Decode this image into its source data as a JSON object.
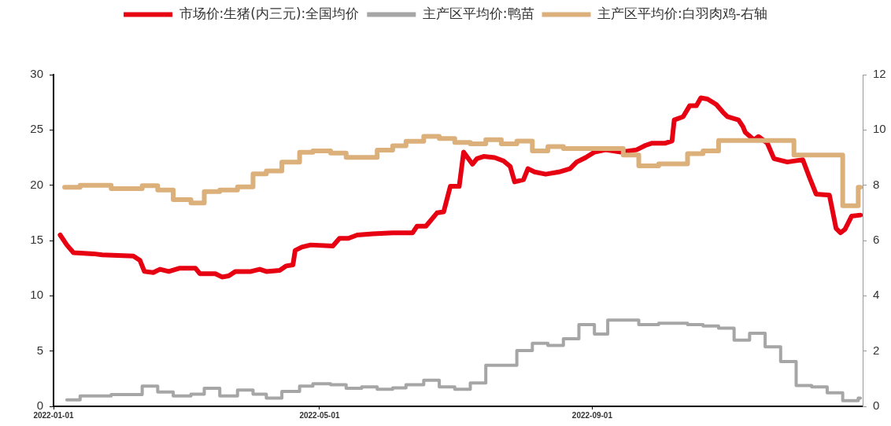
{
  "chart_data": {
    "type": "line",
    "legend": "top",
    "xlim": [
      "2022-01-01",
      "2023-01-01"
    ],
    "xticks": [
      "2022-01-01",
      "2022-05-01",
      "2022-09-01"
    ],
    "ylim": [
      0,
      30
    ],
    "yticks": [
      0,
      5,
      10,
      15,
      20,
      25,
      30
    ],
    "y2lim": [
      0,
      12
    ],
    "y2ticks": [
      0,
      2,
      4,
      6,
      8,
      10,
      12
    ],
    "series": [
      {
        "name": "市场价:生猪(内三元):全国均价",
        "color": "#e60012",
        "type": "line",
        "x": [
          "2022-01-04",
          "2022-01-07",
          "2022-01-10",
          "2022-01-19",
          "2022-01-23",
          "2022-02-06",
          "2022-02-09",
          "2022-02-11",
          "2022-02-15",
          "2022-02-18",
          "2022-02-22",
          "2022-02-27",
          "2022-03-06",
          "2022-03-08",
          "2022-03-15",
          "2022-03-18",
          "2022-03-21",
          "2022-03-24",
          "2022-03-31",
          "2022-04-04",
          "2022-04-07",
          "2022-04-13",
          "2022-04-16",
          "2022-04-19",
          "2022-04-20",
          "2022-04-23",
          "2022-04-27",
          "2022-05-07",
          "2022-05-10",
          "2022-05-14",
          "2022-05-18",
          "2022-05-25",
          "2022-06-03",
          "2022-06-10",
          "2022-06-12",
          "2022-06-14",
          "2022-06-18",
          "2022-06-23",
          "2022-06-26",
          "2022-06-29",
          "2022-07-03",
          "2022-07-05",
          "2022-07-09",
          "2022-07-11",
          "2022-07-14",
          "2022-07-19",
          "2022-07-23",
          "2022-07-26",
          "2022-07-28",
          "2022-08-01",
          "2022-08-03",
          "2022-08-06",
          "2022-08-11",
          "2022-08-17",
          "2022-08-22",
          "2022-08-25",
          "2022-08-29",
          "2022-09-02",
          "2022-09-07",
          "2022-09-14",
          "2022-09-21",
          "2022-09-25",
          "2022-09-28",
          "2022-10-04",
          "2022-10-07",
          "2022-10-08",
          "2022-10-12",
          "2022-10-15",
          "2022-10-18",
          "2022-10-20",
          "2022-10-23",
          "2022-10-27",
          "2022-10-30",
          "2022-11-01",
          "2022-11-06",
          "2022-11-08",
          "2022-11-09",
          "2022-11-13",
          "2022-11-15",
          "2022-11-19",
          "2022-11-22",
          "2022-11-28",
          "2022-12-05",
          "2022-12-08",
          "2022-12-11",
          "2022-12-17",
          "2022-12-20",
          "2022-12-22",
          "2022-12-24",
          "2022-12-27",
          "2022-12-31"
        ],
        "values": [
          15.5,
          14.6,
          13.9,
          13.8,
          13.7,
          13.6,
          13.2,
          12.2,
          12.1,
          12.4,
          12.2,
          12.5,
          12.5,
          12.0,
          12.0,
          11.7,
          11.8,
          12.2,
          12.2,
          12.4,
          12.2,
          12.3,
          12.7,
          12.8,
          14.1,
          14.4,
          14.6,
          14.5,
          15.2,
          15.2,
          15.5,
          15.6,
          15.7,
          15.7,
          15.7,
          16.3,
          16.3,
          17.5,
          17.6,
          19.9,
          19.9,
          23.0,
          21.9,
          22.4,
          22.6,
          22.5,
          22.2,
          21.7,
          20.3,
          20.5,
          21.5,
          21.2,
          21.0,
          21.2,
          21.5,
          22.1,
          22.5,
          23.0,
          23.2,
          23.0,
          23.2,
          23.6,
          23.8,
          23.8,
          24.0,
          25.9,
          26.2,
          27.2,
          27.2,
          27.9,
          27.8,
          27.3,
          26.6,
          26.2,
          25.9,
          25.3,
          24.8,
          24.1,
          24.4,
          23.8,
          22.4,
          22.1,
          22.3,
          20.7,
          19.2,
          19.1,
          16.1,
          15.7,
          16.0,
          17.2,
          17.3
        ]
      },
      {
        "name": "主产区平均价:鸭苗",
        "color": "#a6a6a6",
        "type": "step",
        "x": [
          "2022-01-07",
          "2022-01-13",
          "2022-01-27",
          "2022-02-10",
          "2022-02-17",
          "2022-02-24",
          "2022-03-04",
          "2022-03-10",
          "2022-03-17",
          "2022-03-25",
          "2022-04-01",
          "2022-04-07",
          "2022-04-14",
          "2022-04-22",
          "2022-04-28",
          "2022-05-06",
          "2022-05-13",
          "2022-05-20",
          "2022-05-27",
          "2022-06-03",
          "2022-06-09",
          "2022-06-17",
          "2022-06-24",
          "2022-07-01",
          "2022-07-08",
          "2022-07-15",
          "2022-07-29",
          "2022-08-05",
          "2022-08-12",
          "2022-08-19",
          "2022-08-26",
          "2022-09-02",
          "2022-09-08",
          "2022-09-22",
          "2022-10-01",
          "2022-10-14",
          "2022-10-21",
          "2022-10-28",
          "2022-11-04",
          "2022-11-11",
          "2022-11-18",
          "2022-11-25",
          "2022-12-02",
          "2022-12-09",
          "2022-12-16",
          "2022-12-23",
          "2022-12-30",
          "2022-12-31"
        ],
        "values": [
          0.58,
          0.94,
          1.06,
          1.83,
          1.3,
          0.94,
          1.11,
          1.64,
          0.94,
          1.47,
          1.11,
          0.75,
          1.35,
          1.83,
          2.05,
          1.96,
          1.64,
          1.76,
          1.54,
          1.67,
          1.96,
          2.37,
          1.76,
          1.54,
          2.12,
          3.72,
          5.05,
          5.7,
          5.51,
          6.11,
          7.39,
          6.54,
          7.8,
          7.39,
          7.51,
          7.39,
          7.27,
          7.08,
          5.99,
          6.62,
          5.39,
          4.06,
          1.88,
          1.76,
          1.23,
          0.51,
          0.75,
          0.75
        ]
      },
      {
        "name": "主产区平均价:白羽肉鸡-右轴",
        "color": "#dbb07a",
        "type": "step",
        "axis": "y2",
        "x": [
          "2022-01-06",
          "2022-01-13",
          "2022-01-27",
          "2022-02-10",
          "2022-02-17",
          "2022-02-24",
          "2022-03-04",
          "2022-03-10",
          "2022-03-17",
          "2022-03-25",
          "2022-04-01",
          "2022-04-07",
          "2022-04-14",
          "2022-04-22",
          "2022-04-28",
          "2022-05-06",
          "2022-05-13",
          "2022-05-27",
          "2022-06-03",
          "2022-06-09",
          "2022-06-17",
          "2022-06-24",
          "2022-07-01",
          "2022-07-08",
          "2022-07-15",
          "2022-07-22",
          "2022-07-29",
          "2022-08-05",
          "2022-08-12",
          "2022-08-19",
          "2022-09-15",
          "2022-09-22",
          "2022-10-01",
          "2022-10-14",
          "2022-10-21",
          "2022-10-28",
          "2022-12-01",
          "2022-12-23",
          "2022-12-30",
          "2022-12-31"
        ],
        "values": [
          7.93,
          8.0,
          7.88,
          7.98,
          7.83,
          7.48,
          7.36,
          7.77,
          7.83,
          7.94,
          8.41,
          8.52,
          8.84,
          9.19,
          9.24,
          9.16,
          9.01,
          9.27,
          9.43,
          9.59,
          9.77,
          9.69,
          9.55,
          9.5,
          9.65,
          9.5,
          9.6,
          9.24,
          9.4,
          9.33,
          9.09,
          8.7,
          8.77,
          9.14,
          9.24,
          9.62,
          9.09,
          7.26,
          7.93,
          7.93
        ]
      }
    ]
  }
}
